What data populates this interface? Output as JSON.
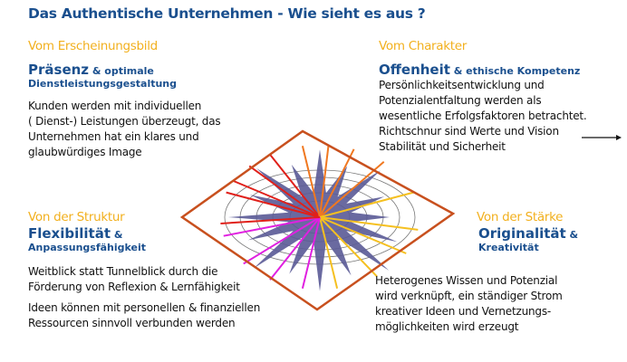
{
  "title": "Das Authentische Unternehmen - Wie sieht es aus ?",
  "quadrants": {
    "tl": {
      "heading": "Vom Erscheinungsbild",
      "key": "Präsenz",
      "rest": " & optimale",
      "rest2": "Dienstleistungsgestaltung",
      "lines": [
        "Kunden werden mit individuellen",
        "( Dienst-) Leistungen überzeugt, das",
        "Unternehmen hat ein klares und",
        "glaubwürdiges Image"
      ]
    },
    "tr": {
      "heading": "Vom Charakter",
      "key": "Offenheit",
      "rest": " & ethische Kompetenz",
      "lines": [
        "Persönlichkeitsentwicklung und",
        "Potenzialentfaltung werden als",
        "wesentliche Erfolgsfaktoren betrachtet.",
        "Richtschnur sind Werte und Vision",
        "Stabilität und Sicherheit"
      ]
    },
    "bl": {
      "heading": "Von der Struktur",
      "key": "Flexibilität",
      "rest": " &",
      "rest2": "Anpassungsfähigkeit",
      "lines": [
        "Weitblick statt Tunnelblick durch die",
        "Förderung von Reflexion & Lernfähigkeit"
      ],
      "lines2": [
        "Ideen können mit personellen & finanziellen",
        "Ressourcen sinnvoll verbunden werden"
      ]
    },
    "br": {
      "heading": "Von der Stärke",
      "key": "Originalität",
      "rest": " &",
      "rest2": "Kreativität",
      "lines": [
        "Heterogenes Wissen und Potenzial",
        "wird verknüpft, ein ständiger Strom",
        "kreativer Ideen und Vernetzungs-",
        "möglichkeiten wird erzeugt"
      ]
    }
  },
  "colors": {
    "title": "#1a4f8e",
    "heading": "#f2b01e",
    "diamond": "#c8501e",
    "star": "#5a5a96"
  }
}
